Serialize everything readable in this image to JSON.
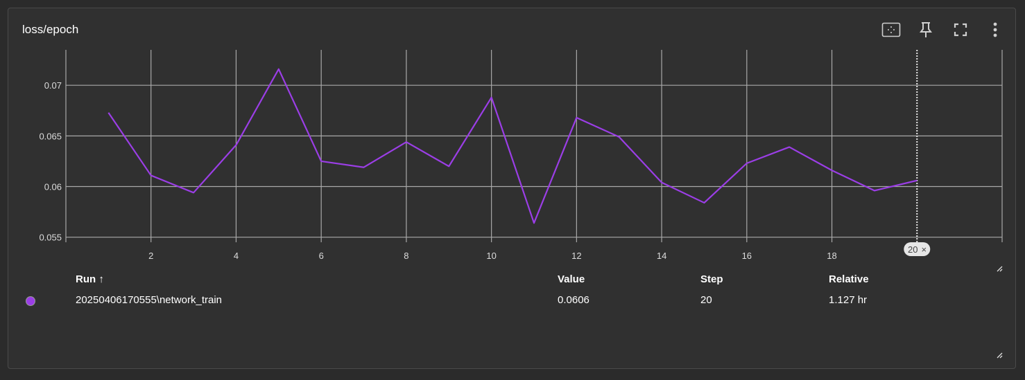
{
  "card": {
    "title": "loss/epoch"
  },
  "toolbar": {
    "icons": [
      "fit-domain-icon",
      "pin-icon",
      "fullscreen-icon",
      "more-vert-icon"
    ]
  },
  "colors": {
    "series": "#9b3ee6",
    "grid": "#a9a9a9",
    "background": "#303030"
  },
  "chart_data": {
    "type": "line",
    "xlabel": "",
    "ylabel": "",
    "xlim": [
      0,
      22
    ],
    "ylim": [
      0.0545,
      0.0735
    ],
    "x_ticks": [
      "2",
      "4",
      "6",
      "8",
      "10",
      "12",
      "14",
      "16",
      "18"
    ],
    "x_tick_values": [
      2,
      4,
      6,
      8,
      10,
      12,
      14,
      16,
      18
    ],
    "y_ticks": [
      "0.055",
      "0.06",
      "0.065",
      "0.07"
    ],
    "y_tick_values": [
      0.055,
      0.06,
      0.065,
      0.07
    ],
    "grid": true,
    "series": [
      {
        "x": [
          1,
          2,
          3,
          4,
          5,
          6,
          7,
          8,
          9,
          10,
          11,
          12,
          13,
          14,
          15,
          16,
          17,
          18,
          19,
          20
        ],
        "values": [
          0.0673,
          0.0611,
          0.0594,
          0.0641,
          0.0716,
          0.0625,
          0.0619,
          0.0644,
          0.062,
          0.0688,
          0.0564,
          0.0668,
          0.0649,
          0.0604,
          0.0584,
          0.0623,
          0.0639,
          0.0616,
          0.0596,
          0.0606
        ]
      }
    ],
    "cursor": {
      "x": 20,
      "label": "20",
      "close_glyph": "×"
    }
  },
  "table": {
    "headers": {
      "run": "Run ↑",
      "value": "Value",
      "step": "Step",
      "relative": "Relative"
    },
    "rows": [
      {
        "run": "20250406170555\\network_train",
        "value": "0.0606",
        "step": "20",
        "relative": "1.127 hr"
      }
    ]
  }
}
